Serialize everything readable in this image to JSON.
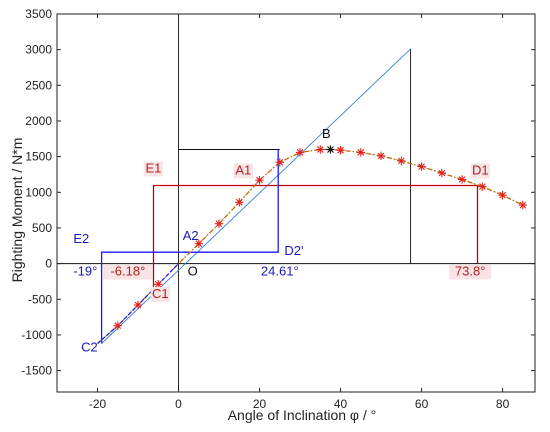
{
  "chart_data": {
    "type": "line",
    "title": "",
    "xlabel": "Angle of Inclination φ / °",
    "ylabel": "Righting Moment / N*m",
    "xlim": [
      -30,
      88
    ],
    "ylim": [
      -1800,
      3500
    ],
    "x_ticks": [
      -20,
      0,
      20,
      40,
      60,
      80
    ],
    "y_ticks": [
      -1500,
      -1000,
      -500,
      0,
      500,
      1000,
      1500,
      2000,
      2500,
      3000,
      3500
    ],
    "grid": false,
    "legend": "none",
    "colors": {
      "curve": "#cc6600",
      "markers": "#e0201a",
      "red_lines": "#c00000",
      "blue_lines": "#1a1aff",
      "tangent": "#3a7fd8",
      "black_lines": "#111111",
      "red_text": "#b22222",
      "blue_text": "#1a1ab8",
      "label_bg": "#f8e4e4"
    },
    "series": [
      {
        "x": [
          -20,
          -15,
          -10,
          -5,
          0,
          5,
          10,
          15,
          20,
          25,
          30,
          35,
          37.5,
          40,
          45,
          50,
          55,
          60,
          65,
          70,
          75,
          80,
          85
        ],
        "values": [
          -1120,
          -870,
          -580,
          -290,
          0,
          280,
          560,
          860,
          1170,
          1420,
          1560,
          1600,
          1600,
          1590,
          1560,
          1510,
          1440,
          1360,
          1270,
          1180,
          1080,
          960,
          820
        ]
      }
    ],
    "markers": {
      "x": [
        -15,
        -10,
        -5,
        5,
        10,
        15,
        20,
        25,
        30,
        35,
        40,
        45,
        50,
        55,
        60,
        65,
        70,
        75,
        80,
        85
      ],
      "values": [
        -870,
        -580,
        -290,
        280,
        560,
        860,
        1170,
        1420,
        1560,
        1600,
        1590,
        1560,
        1510,
        1440,
        1360,
        1270,
        1180,
        1080,
        960,
        820
      ]
    },
    "peak_marker": {
      "x": 37.5,
      "y": 1600
    },
    "tangent_line": {
      "x": [
        -19,
        57.3
      ],
      "y": [
        -1120,
        3010
      ]
    },
    "black_lines": [
      {
        "x": [
          0,
          0
        ],
        "y": [
          -1800,
          3500
        ]
      },
      {
        "x": [
          0,
          25
        ],
        "y": [
          1600,
          1600
        ]
      },
      {
        "x": [
          57.3,
          57.3
        ],
        "y": [
          0,
          3010
        ]
      }
    ],
    "red_lines": [
      {
        "x": [
          -6.18,
          -6.18,
          73.8,
          73.8
        ],
        "y": [
          -480,
          1095,
          1095,
          0
        ]
      }
    ],
    "blue_lines": [
      {
        "x": [
          -19,
          -19,
          24.61,
          24.61
        ],
        "y": [
          -1120,
          160,
          160,
          1600
        ]
      }
    ],
    "annotations": [
      {
        "text": "B",
        "x": 36.5,
        "y": 1760,
        "color": "black",
        "bg": false
      },
      {
        "text": "E1",
        "x": -6.2,
        "y": 1280,
        "color": "red",
        "bg": true
      },
      {
        "text": "A1",
        "x": 16,
        "y": 1250,
        "color": "red",
        "bg": true
      },
      {
        "text": "D1",
        "x": 74.5,
        "y": 1250,
        "color": "red",
        "bg": true
      },
      {
        "text": "E2",
        "x": -24,
        "y": 290,
        "color": "blue",
        "bg": false
      },
      {
        "text": "A2",
        "x": 3,
        "y": 330,
        "color": "blue",
        "bg": false
      },
      {
        "text": "D2'",
        "x": 28.5,
        "y": 120,
        "color": "blue",
        "bg": false
      },
      {
        "text": "-19°",
        "x": -23,
        "y": -165,
        "color": "blue",
        "bg": false
      },
      {
        "text": "-6.18°",
        "x": -12.5,
        "y": -165,
        "color": "red",
        "bg": true
      },
      {
        "text": "O",
        "x": 3.5,
        "y": -165,
        "color": "black",
        "bg": false
      },
      {
        "text": "24.61°",
        "x": 25,
        "y": -165,
        "color": "blue",
        "bg": false
      },
      {
        "text": "73.8°",
        "x": 72,
        "y": -165,
        "color": "red",
        "bg": true
      },
      {
        "text": "C1",
        "x": -4.5,
        "y": -480,
        "color": "red",
        "bg": true
      },
      {
        "text": "C2",
        "x": -22,
        "y": -1230,
        "color": "blue",
        "bg": false
      }
    ]
  }
}
